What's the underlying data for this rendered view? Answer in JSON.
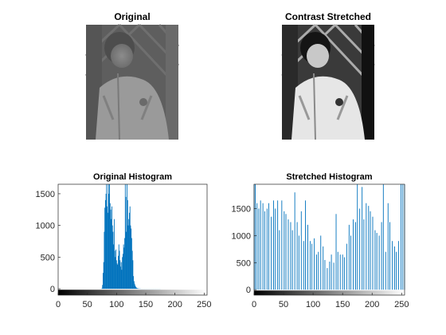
{
  "figure": {
    "images": [
      {
        "title": "Original",
        "kind": "original"
      },
      {
        "title": "Contrast Stretched",
        "kind": "stretched"
      }
    ]
  },
  "chart_data": [
    {
      "type": "bar",
      "title": "Original Histogram",
      "xlabel": "",
      "ylabel": "",
      "xlim": [
        0,
        255
      ],
      "ylim": [
        -100,
        1650
      ],
      "xticks": [
        0,
        50,
        100,
        150,
        200,
        250
      ],
      "yticks": [
        0,
        500,
        1000,
        1500
      ],
      "colorbar": "gray",
      "bar_color": "#0072BD",
      "x": [
        75,
        76,
        77,
        78,
        79,
        80,
        81,
        82,
        83,
        84,
        85,
        86,
        87,
        88,
        89,
        90,
        91,
        92,
        93,
        94,
        95,
        96,
        97,
        98,
        99,
        100,
        101,
        102,
        103,
        104,
        105,
        106,
        107,
        108,
        109,
        110,
        111,
        112,
        113,
        114,
        115,
        116,
        117,
        118,
        119,
        120,
        121,
        122,
        123,
        124,
        125,
        126,
        127,
        128,
        129,
        130,
        131,
        132,
        133,
        134,
        135,
        136,
        137,
        138,
        139,
        140,
        141,
        142,
        143,
        144,
        145,
        146,
        147,
        148,
        149,
        150,
        151,
        152,
        153,
        154,
        155,
        156,
        157,
        158,
        159,
        160,
        161,
        162,
        163,
        164,
        165,
        166,
        167,
        168,
        169,
        170,
        171,
        172,
        173,
        174,
        175
      ],
      "values": [
        10,
        60,
        250,
        420,
        900,
        1280,
        1400,
        1500,
        1650,
        1300,
        1200,
        1650,
        1500,
        1650,
        1350,
        1250,
        1100,
        1300,
        1000,
        900,
        700,
        1100,
        600,
        500,
        620,
        450,
        400,
        380,
        520,
        700,
        600,
        450,
        350,
        420,
        300,
        500,
        550,
        700,
        650,
        800,
        1650,
        1450,
        900,
        1650,
        1400,
        1000,
        1100,
        1200,
        1300,
        1000,
        950,
        800,
        600,
        450,
        200,
        120,
        80,
        50,
        30,
        20,
        10,
        8,
        5,
        4,
        3,
        2,
        2,
        1,
        1,
        1,
        1,
        1,
        1,
        1,
        1,
        1,
        1,
        1,
        1,
        1,
        1,
        1,
        1,
        1,
        1,
        1,
        1,
        1,
        1,
        1,
        1,
        1,
        1,
        1,
        1,
        1,
        1,
        1,
        1,
        1,
        1
      ]
    },
    {
      "type": "bar",
      "title": "Stretched Histogram",
      "xlabel": "",
      "ylabel": "",
      "xlim": [
        0,
        255
      ],
      "ylim": [
        -100,
        1950
      ],
      "xticks": [
        0,
        50,
        100,
        150,
        200,
        250
      ],
      "yticks": [
        0,
        500,
        1000,
        1500
      ],
      "colorbar": "gray",
      "bar_color": "#0072BD",
      "x": [
        0,
        2,
        5,
        8,
        11,
        15,
        18,
        22,
        25,
        29,
        33,
        36,
        40,
        43,
        47,
        51,
        54,
        58,
        62,
        65,
        69,
        73,
        76,
        80,
        84,
        87,
        91,
        95,
        98,
        102,
        106,
        109,
        113,
        117,
        120,
        124,
        128,
        131,
        135,
        139,
        142,
        146,
        150,
        153,
        157,
        161,
        164,
        168,
        172,
        175,
        179,
        183,
        186,
        190,
        194,
        197,
        201,
        205,
        208,
        212,
        216,
        219,
        223,
        227,
        230,
        234,
        238,
        241,
        245,
        249,
        252,
        255
      ],
      "values": [
        1950,
        1950,
        1600,
        1500,
        1650,
        1600,
        1450,
        1500,
        1600,
        1350,
        1650,
        1500,
        1650,
        1100,
        1650,
        1450,
        1400,
        1300,
        1250,
        1100,
        1800,
        1250,
        1000,
        1450,
        900,
        1650,
        1200,
        900,
        850,
        950,
        650,
        700,
        1000,
        800,
        550,
        400,
        520,
        650,
        500,
        1400,
        700,
        650,
        650,
        600,
        850,
        1200,
        1000,
        1300,
        1250,
        1950,
        1500,
        1900,
        1300,
        1600,
        1550,
        1450,
        1350,
        1100,
        1050,
        1000,
        1250,
        1950,
        700,
        1600,
        1250,
        900,
        800,
        700,
        900,
        1950,
        1950,
        1950
      ]
    }
  ]
}
